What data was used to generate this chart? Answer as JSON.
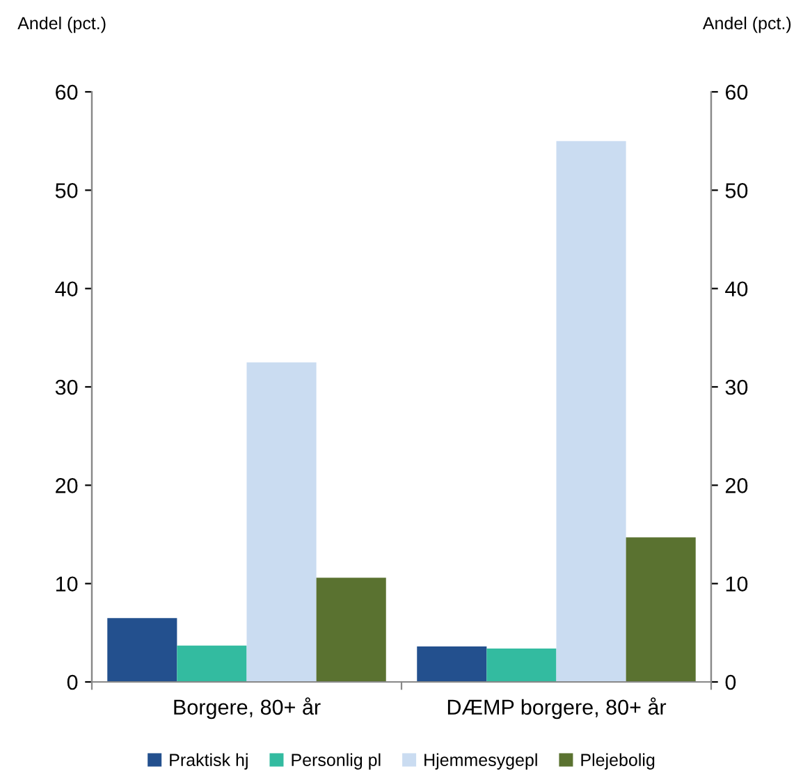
{
  "chart_data": {
    "type": "bar",
    "ylabel": "Andel (pct.)",
    "y2label": "Andel (pct.)",
    "categories": [
      "Borgere, 80+ år",
      "DÆMP borgere, 80+ år"
    ],
    "series": [
      {
        "name": "Praktisk hj",
        "color": "#23508e",
        "values": [
          6.5,
          3.6
        ]
      },
      {
        "name": "Personlig pl",
        "color": "#33bba0",
        "values": [
          3.7,
          3.4
        ]
      },
      {
        "name": "Hjemmesygepl",
        "color": "#cadcf1",
        "values": [
          32.5,
          55
        ]
      },
      {
        "name": "Plejebolig",
        "color": "#5a7230",
        "values": [
          10.6,
          14.7
        ]
      }
    ],
    "ylim": [
      0,
      60
    ],
    "yticks": [
      0,
      10,
      20,
      30,
      40,
      50,
      60
    ],
    "y2lim": [
      0,
      60
    ],
    "y2ticks": [
      0,
      10,
      20,
      30,
      40,
      50,
      60
    ],
    "grid": false,
    "legend": "bottom"
  }
}
